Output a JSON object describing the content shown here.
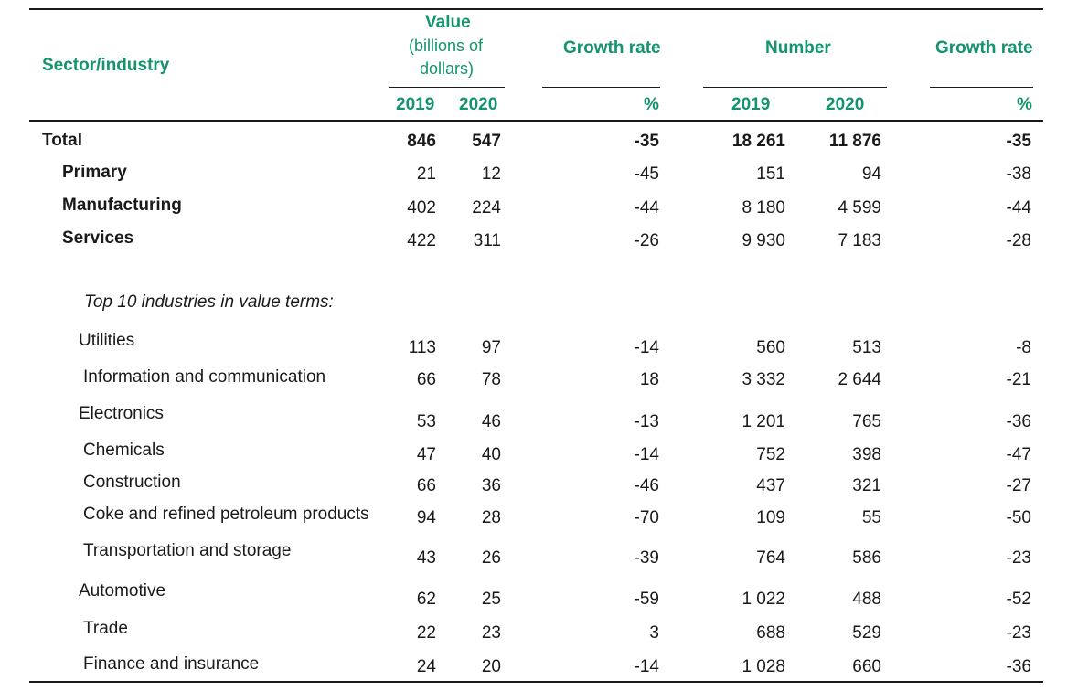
{
  "header": {
    "sector": "Sector/industry",
    "value_title": "Value",
    "value_sub1": "(billions of",
    "value_sub2": "dollars)",
    "growth1": "Growth rate",
    "number": "Number",
    "growth2": "Growth rate",
    "y2019a": "2019",
    "y2020a": "2020",
    "pct1": "%",
    "y2019b": "2019",
    "y2020b": "2020",
    "pct2": "%"
  },
  "rows": [
    {
      "label": "Total",
      "v19": "846",
      "v20": "547",
      "g1": "-35",
      "n19": "18 261",
      "n20": "11 876",
      "g2": "-35"
    },
    {
      "label": "Primary",
      "v19": "21",
      "v20": "12",
      "g1": "-45",
      "n19": "151",
      "n20": "94",
      "g2": "-38"
    },
    {
      "label": "Manufacturing",
      "v19": "402",
      "v20": "224",
      "g1": "-44",
      "n19": "8 180",
      "n20": "4 599",
      "g2": "-44"
    },
    {
      "label": "Services",
      "v19": "422",
      "v20": "311",
      "g1": "-26",
      "n19": "9 930",
      "n20": "7 183",
      "g2": "-28"
    },
    {
      "label": "Utilities",
      "v19": "113",
      "v20": "97",
      "g1": "-14",
      "n19": "560",
      "n20": "513",
      "g2": "-8"
    },
    {
      "label": "Information and communication",
      "v19": "66",
      "v20": "78",
      "g1": "18",
      "n19": "3 332",
      "n20": "2 644",
      "g2": "-21"
    },
    {
      "label": "Electronics",
      "v19": "53",
      "v20": "46",
      "g1": "-13",
      "n19": "1 201",
      "n20": "765",
      "g2": "-36"
    },
    {
      "label": "Chemicals",
      "v19": "47",
      "v20": "40",
      "g1": "-14",
      "n19": "752",
      "n20": "398",
      "g2": "-47"
    },
    {
      "label": "Construction",
      "v19": "66",
      "v20": "36",
      "g1": "-46",
      "n19": "437",
      "n20": "321",
      "g2": "-27"
    },
    {
      "label": "Coke and refined petroleum products",
      "v19": "94",
      "v20": "28",
      "g1": "-70",
      "n19": "109",
      "n20": "55",
      "g2": "-50"
    },
    {
      "label": "Transportation and storage",
      "v19": "43",
      "v20": "26",
      "g1": "-39",
      "n19": "764",
      "n20": "586",
      "g2": "-23"
    },
    {
      "label": "Automotive",
      "v19": "62",
      "v20": "25",
      "g1": "-59",
      "n19": "1 022",
      "n20": "488",
      "g2": "-52"
    },
    {
      "label": "Trade",
      "v19": "22",
      "v20": "23",
      "g1": "3",
      "n19": "688",
      "n20": "529",
      "g2": "-23"
    },
    {
      "label": "Finance and insurance",
      "v19": "24",
      "v20": "20",
      "g1": "-14",
      "n19": "1 028",
      "n20": "660",
      "g2": "-36"
    }
  ],
  "section_note": "Top 10 industries in value terms:"
}
